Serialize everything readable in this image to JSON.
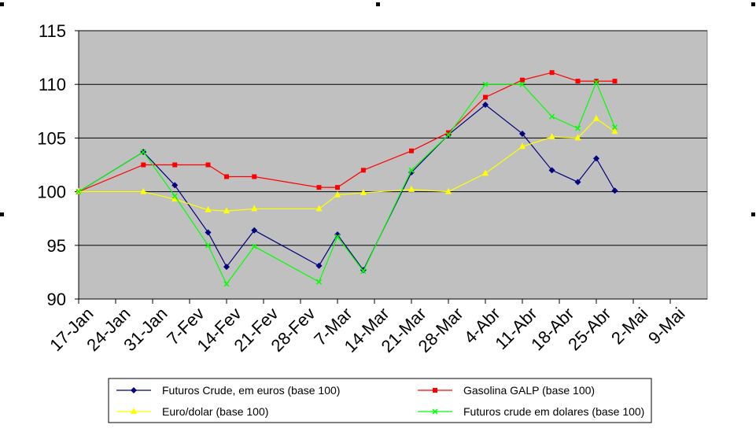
{
  "chart_data": {
    "type": "line",
    "categories": [
      "17-Jan",
      "24-Jan",
      "31-Jan",
      "7-Fev",
      "14-Fev",
      "21-Fev",
      "28-Fev",
      "7-Mar",
      "14-Mar",
      "21-Mar",
      "28-Mar",
      "4-Abr",
      "11-Abr",
      "18-Abr",
      "25-Abr",
      "2-Mai",
      "9-Mai"
    ],
    "ylim": [
      90,
      115
    ],
    "yticks": [
      "90",
      "95",
      "100",
      "105",
      "110",
      "115"
    ],
    "grid": true,
    "plot_background": "#C0C0C0",
    "legend_position": "bottom",
    "series": [
      {
        "name": "Futuros Crude, em euros (base 100)",
        "color": "#000080",
        "marker": "diamond",
        "x": [
          0,
          1.75,
          2.6,
          3.5,
          4,
          4.75,
          6.5,
          7,
          7.7,
          9,
          10,
          11,
          12,
          12.8,
          13.5,
          14,
          14.5
        ],
        "y": [
          100,
          103.7,
          100.6,
          96.2,
          93,
          96.4,
          93.1,
          96,
          92.7,
          101.8,
          105.3,
          108.1,
          105.4,
          102,
          100.9,
          103.1,
          100.1
        ]
      },
      {
        "name": "Gasolina GALP (base 100)",
        "color": "#FF0000",
        "marker": "square",
        "x": [
          0,
          1.75,
          2.6,
          3.5,
          4,
          4.75,
          6.5,
          7,
          7.7,
          9,
          10,
          11,
          12,
          12.8,
          13.5,
          14,
          14.5
        ],
        "y": [
          100,
          102.5,
          102.5,
          102.5,
          101.4,
          101.4,
          100.4,
          100.4,
          102,
          103.8,
          105.5,
          108.8,
          110.4,
          111.1,
          110.3,
          110.3,
          110.3
        ]
      },
      {
        "name": "Euro/dolar (base 100)",
        "color": "#FFFF00",
        "marker": "triangle",
        "x": [
          0,
          1.75,
          2.6,
          3.5,
          4,
          4.75,
          6.5,
          7,
          7.7,
          9,
          10,
          11,
          12,
          12.8,
          13.5,
          14,
          14.5
        ],
        "y": [
          100,
          100,
          99.3,
          98.3,
          98.2,
          98.4,
          98.4,
          99.7,
          99.9,
          100.2,
          100,
          101.7,
          104.2,
          105.1,
          105,
          106.8,
          105.6
        ]
      },
      {
        "name": "Futuros crude em dolares (base 100)",
        "color": "#00FF00",
        "marker": "x",
        "x": [
          0,
          1.75,
          2.6,
          3.5,
          4,
          4.75,
          6.5,
          7,
          7.7,
          9,
          10,
          11,
          12,
          12.8,
          13.5,
          14,
          14.5
        ],
        "y": [
          100,
          103.7,
          99.6,
          95,
          91.4,
          94.9,
          91.6,
          95.8,
          92.6,
          102,
          105.3,
          110,
          110,
          107,
          105.9,
          110.2,
          106
        ]
      }
    ]
  }
}
